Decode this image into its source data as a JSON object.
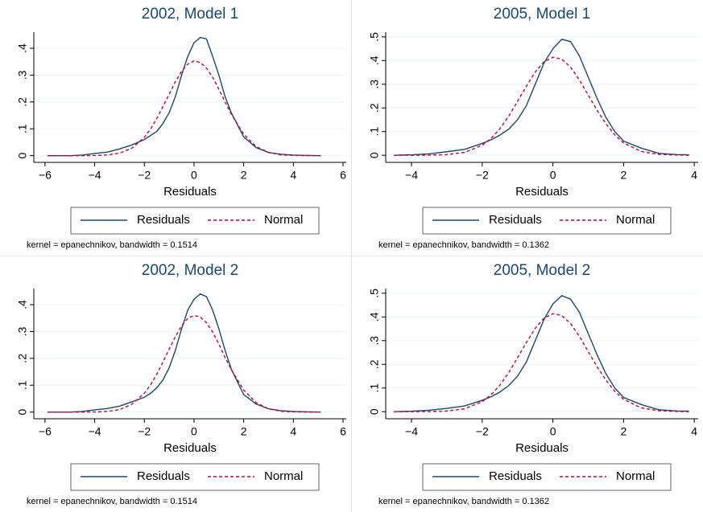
{
  "chart_data": [
    {
      "type": "line",
      "title": "2002, Model 1",
      "x_label": "Residuals",
      "note": "kernel = epanechnikov, bandwidth = 0.1514",
      "xlim": [
        -6.45,
        6.13
      ],
      "ylim": [
        -0.025,
        0.46
      ],
      "grid": true,
      "xticks": [
        {
          "value": -6,
          "label": "−6"
        },
        {
          "value": -4,
          "label": "−4"
        },
        {
          "value": -2,
          "label": "−2"
        },
        0,
        2,
        4,
        6
      ],
      "yticks": [
        0,
        {
          "value": 0.1,
          "label": ".1"
        },
        {
          "value": 0.2,
          "label": ".2"
        },
        {
          "value": 0.3,
          "label": ".3"
        },
        {
          "value": 0.4,
          "label": ".4"
        }
      ],
      "x": [
        -5.9,
        -5,
        -4.5,
        -4,
        -3.5,
        -3,
        -2.5,
        -2,
        -1.75,
        -1.5,
        -1.25,
        -1,
        -0.75,
        -0.5,
        -0.25,
        0,
        0.25,
        0.5,
        0.75,
        1,
        1.25,
        1.5,
        2,
        2.5,
        3,
        3.5,
        4,
        4.5,
        5.1
      ],
      "series": [
        {
          "name": "Residuals",
          "color": "#1a476f",
          "dash": "solid",
          "values": [
            0,
            0,
            0.002,
            0.008,
            0.013,
            0.025,
            0.04,
            0.06,
            0.075,
            0.09,
            0.12,
            0.16,
            0.22,
            0.3,
            0.37,
            0.42,
            0.44,
            0.435,
            0.37,
            0.3,
            0.22,
            0.16,
            0.07,
            0.03,
            0.012,
            0.005,
            0.002,
            0.001,
            0
          ]
        },
        {
          "name": "Normal",
          "color": "#c10534",
          "dash": "dashed",
          "values": [
            0,
            0,
            0,
            0.0006,
            0.0025,
            0.009,
            0.028,
            0.068,
            0.099,
            0.138,
            0.183,
            0.229,
            0.275,
            0.314,
            0.341,
            0.353,
            0.347,
            0.326,
            0.292,
            0.248,
            0.2,
            0.155,
            0.08,
            0.034,
            0.012,
            0.003,
            0.001,
            0,
            0
          ]
        }
      ]
    },
    {
      "type": "line",
      "title": "2005, Model 1",
      "x_label": "Residuals",
      "note": "kernel = epanechnikov, bandwidth = 0.1362",
      "xlim": [
        -4.73,
        4.11
      ],
      "ylim": [
        -0.03,
        0.52
      ],
      "grid": true,
      "xticks": [
        {
          "value": -4,
          "label": "−4"
        },
        {
          "value": -2,
          "label": "−2"
        },
        0,
        2,
        4
      ],
      "yticks": [
        0,
        {
          "value": 0.1,
          "label": ".1"
        },
        {
          "value": 0.2,
          "label": ".2"
        },
        {
          "value": 0.3,
          "label": ".3"
        },
        {
          "value": 0.4,
          "label": ".4"
        },
        {
          "value": 0.5,
          "label": ".5"
        }
      ],
      "x": [
        -4.5,
        -4,
        -3.5,
        -3,
        -2.5,
        -2,
        -1.75,
        -1.5,
        -1.25,
        -1,
        -0.75,
        -0.5,
        -0.25,
        0,
        0.25,
        0.5,
        0.75,
        1,
        1.25,
        1.5,
        1.75,
        2,
        2.5,
        3,
        3.5,
        3.85
      ],
      "series": [
        {
          "name": "Residuals",
          "color": "#1a476f",
          "dash": "solid",
          "values": [
            0,
            0.002,
            0.006,
            0.015,
            0.025,
            0.05,
            0.065,
            0.085,
            0.11,
            0.15,
            0.21,
            0.3,
            0.39,
            0.45,
            0.49,
            0.48,
            0.42,
            0.33,
            0.24,
            0.16,
            0.1,
            0.06,
            0.03,
            0.008,
            0.003,
            0.002
          ]
        },
        {
          "name": "Normal",
          "color": "#c10534",
          "dash": "dashed",
          "values": [
            0,
            0,
            0.0005,
            0.0027,
            0.012,
            0.042,
            0.071,
            0.112,
            0.165,
            0.228,
            0.292,
            0.352,
            0.395,
            0.414,
            0.406,
            0.372,
            0.318,
            0.254,
            0.19,
            0.133,
            0.086,
            0.052,
            0.016,
            0.004,
            0.001,
            0
          ]
        }
      ]
    },
    {
      "type": "line",
      "title": "2002, Model 2",
      "x_label": "Residuals",
      "note": "kernel = epanechnikov, bandwidth = 0.1514",
      "xlim": [
        -6.45,
        6.13
      ],
      "ylim": [
        -0.025,
        0.46
      ],
      "grid": true,
      "xticks": [
        {
          "value": -6,
          "label": "−6"
        },
        {
          "value": -4,
          "label": "−4"
        },
        {
          "value": -2,
          "label": "−2"
        },
        0,
        2,
        4,
        6
      ],
      "yticks": [
        0,
        {
          "value": 0.1,
          "label": ".1"
        },
        {
          "value": 0.2,
          "label": ".2"
        },
        {
          "value": 0.3,
          "label": ".3"
        },
        {
          "value": 0.4,
          "label": ".4"
        }
      ],
      "x": [
        -5.9,
        -5,
        -4.5,
        -4,
        -3.5,
        -3,
        -2.5,
        -2,
        -1.75,
        -1.5,
        -1.25,
        -1,
        -0.75,
        -0.5,
        -0.25,
        0,
        0.25,
        0.5,
        0.75,
        1,
        1.25,
        1.5,
        2,
        2.5,
        3,
        3.5,
        4,
        4.5,
        5.1
      ],
      "series": [
        {
          "name": "Residuals",
          "color": "#1a476f",
          "dash": "solid",
          "values": [
            0,
            0,
            0.002,
            0.008,
            0.013,
            0.022,
            0.038,
            0.055,
            0.07,
            0.09,
            0.12,
            0.165,
            0.23,
            0.31,
            0.38,
            0.42,
            0.44,
            0.43,
            0.38,
            0.31,
            0.23,
            0.16,
            0.065,
            0.03,
            0.012,
            0.005,
            0.002,
            0.001,
            0
          ]
        },
        {
          "name": "Normal",
          "color": "#c10534",
          "dash": "dashed",
          "values": [
            0,
            0,
            0,
            0.0006,
            0.0025,
            0.009,
            0.029,
            0.07,
            0.101,
            0.141,
            0.187,
            0.234,
            0.281,
            0.321,
            0.349,
            0.36,
            0.354,
            0.333,
            0.298,
            0.253,
            0.204,
            0.158,
            0.082,
            0.035,
            0.012,
            0.003,
            0.001,
            0,
            0
          ]
        }
      ]
    },
    {
      "type": "line",
      "title": "2005, Model 2",
      "x_label": "Residuals",
      "note": "kernel = epanechnikov, bandwidth = 0.1362",
      "xlim": [
        -4.73,
        4.11
      ],
      "ylim": [
        -0.03,
        0.52
      ],
      "grid": true,
      "xticks": [
        {
          "value": -4,
          "label": "−4"
        },
        {
          "value": -2,
          "label": "−2"
        },
        0,
        2,
        4
      ],
      "yticks": [
        0,
        {
          "value": 0.1,
          "label": ".1"
        },
        {
          "value": 0.2,
          "label": ".2"
        },
        {
          "value": 0.3,
          "label": ".3"
        },
        {
          "value": 0.4,
          "label": ".4"
        },
        {
          "value": 0.5,
          "label": ".5"
        }
      ],
      "x": [
        -4.5,
        -4,
        -3.5,
        -3,
        -2.5,
        -2,
        -1.75,
        -1.5,
        -1.25,
        -1,
        -0.75,
        -0.5,
        -0.25,
        0,
        0.25,
        0.5,
        0.75,
        1,
        1.25,
        1.5,
        1.75,
        2,
        2.5,
        3,
        3.5,
        3.85
      ],
      "series": [
        {
          "name": "Residuals",
          "color": "#1a476f",
          "dash": "solid",
          "values": [
            0,
            0.002,
            0.006,
            0.014,
            0.024,
            0.048,
            0.063,
            0.083,
            0.11,
            0.15,
            0.21,
            0.3,
            0.39,
            0.455,
            0.49,
            0.475,
            0.42,
            0.33,
            0.24,
            0.16,
            0.1,
            0.06,
            0.03,
            0.008,
            0.003,
            0.002
          ]
        },
        {
          "name": "Normal",
          "color": "#c10534",
          "dash": "dashed",
          "values": [
            0,
            0,
            0.0005,
            0.0027,
            0.012,
            0.042,
            0.071,
            0.112,
            0.165,
            0.228,
            0.292,
            0.352,
            0.395,
            0.414,
            0.406,
            0.372,
            0.318,
            0.254,
            0.19,
            0.133,
            0.086,
            0.052,
            0.016,
            0.004,
            0.001,
            0
          ]
        }
      ]
    }
  ]
}
